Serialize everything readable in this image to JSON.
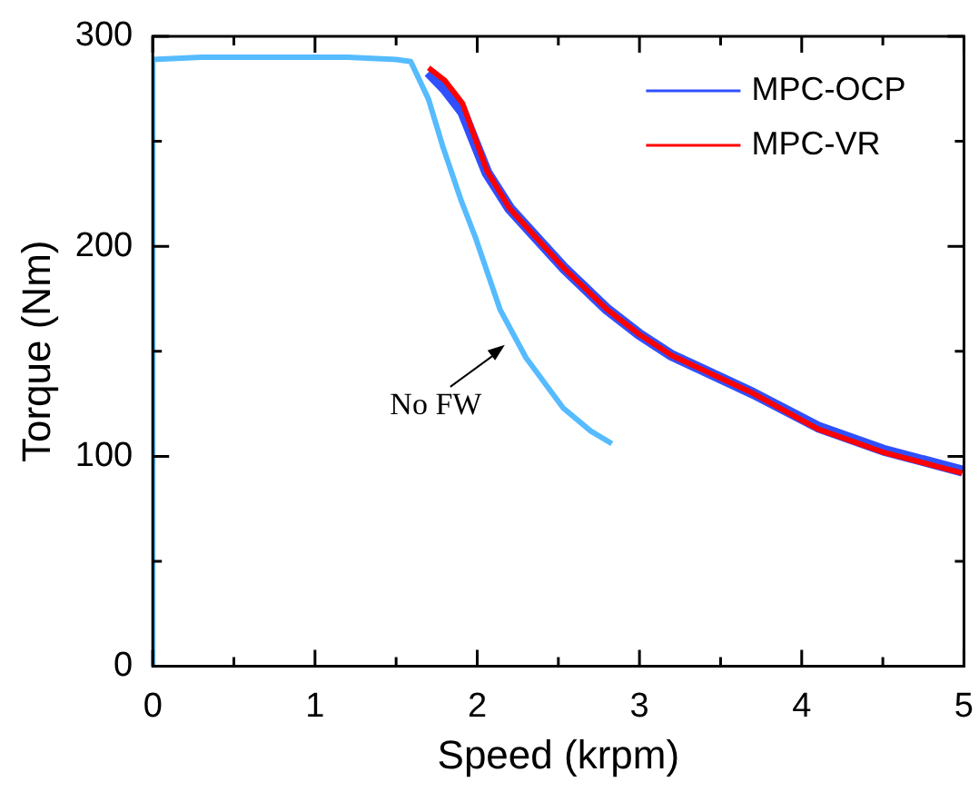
{
  "chart_data": {
    "type": "line",
    "xlabel": "Speed (krpm)",
    "ylabel": "Torque (Nm)",
    "xlim": [
      0,
      5
    ],
    "ylim": [
      0,
      300
    ],
    "xticks": [
      0,
      {
        "value": 0.5,
        "label": null
      },
      1,
      {
        "value": 1.5,
        "label": null
      },
      2,
      {
        "value": 2.5,
        "label": null
      },
      3,
      {
        "value": 3.5,
        "label": null
      },
      4,
      {
        "value": 4.5,
        "label": null
      },
      5
    ],
    "yticks": [
      0,
      {
        "value": 50,
        "label": null
      },
      100,
      {
        "value": 150,
        "label": null
      },
      200,
      {
        "value": 250,
        "label": null
      },
      300
    ],
    "grid": false,
    "legend": "top right",
    "marker": "none",
    "line_style": "solid",
    "series": [
      {
        "name": "MPC-OCP",
        "color": "#3050ff",
        "x": [
          1.7,
          1.8,
          1.91,
          2.06,
          2.2,
          2.53,
          2.8,
          3,
          3.2,
          3.7,
          4.1,
          4.5,
          4.99
        ],
        "values": [
          283,
          275,
          264,
          235,
          218,
          190,
          170,
          158,
          148,
          130,
          114,
          103,
          93
        ]
      },
      {
        "name": "MPC-VR",
        "color": "#ff0000",
        "x": [
          1.7,
          1.8,
          1.91,
          2.06,
          2.2,
          2.53,
          2.8,
          3,
          3.2,
          3.7,
          4.1,
          4.5,
          4.99
        ],
        "values": [
          285,
          279,
          268,
          236,
          218,
          190,
          170,
          158,
          148,
          130,
          113,
          102,
          92
        ]
      },
      {
        "color": "#56bbff",
        "x": [
          0,
          0,
          0.3,
          0.8,
          1.2,
          1.5,
          1.59,
          1.7,
          1.79,
          1.9,
          1.99,
          2.14,
          2.3,
          2.53,
          2.7,
          2.83
        ],
        "values": [
          0,
          289,
          290,
          290,
          290,
          289,
          288,
          270,
          247,
          222,
          204,
          170,
          147,
          123,
          112,
          106
        ]
      }
    ],
    "annotations": [
      "No FW"
    ]
  }
}
